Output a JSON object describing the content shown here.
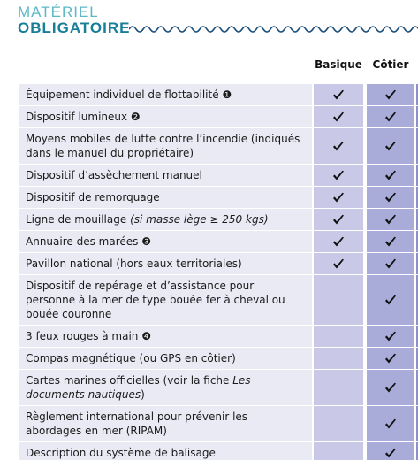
{
  "header": {
    "title_line1": "MATÉRIEL",
    "title_line2": "OBLIGATOIRE"
  },
  "table": {
    "columns": [
      "Basique",
      "Côtier"
    ],
    "rows": [
      {
        "label": [
          {
            "text": "Équipement individuel de flottabilité ❶"
          }
        ],
        "basique": true,
        "cotier": true
      },
      {
        "label": [
          {
            "text": "Dispositif lumineux ❷"
          }
        ],
        "basique": true,
        "cotier": true
      },
      {
        "label": [
          {
            "text": "Moyens mobiles de lutte contre l’incendie (indiqués dans le manuel du propriétaire)"
          }
        ],
        "basique": true,
        "cotier": true
      },
      {
        "label": [
          {
            "text": "Dispositif d’assèchement manuel"
          }
        ],
        "basique": true,
        "cotier": true
      },
      {
        "label": [
          {
            "text": "Dispositif de remorquage"
          }
        ],
        "basique": true,
        "cotier": true
      },
      {
        "label": [
          {
            "text": "Ligne de mouillage "
          },
          {
            "text": "(si masse lège ≥ 250 kgs)",
            "italic": true
          }
        ],
        "basique": true,
        "cotier": true
      },
      {
        "label": [
          {
            "text": "Annuaire des marées ❸"
          }
        ],
        "basique": true,
        "cotier": true
      },
      {
        "label": [
          {
            "text": "Pavillon national (hors eaux territoriales)"
          }
        ],
        "basique": true,
        "cotier": true
      },
      {
        "label": [
          {
            "text": "Dispositif de repérage et d’assistance pour personne à la mer de type bouée fer à cheval ou bouée couronne"
          }
        ],
        "basique": false,
        "cotier": true
      },
      {
        "label": [
          {
            "text": "3 feux rouges à main ❹"
          }
        ],
        "basique": false,
        "cotier": true
      },
      {
        "label": [
          {
            "text": "Compas magnétique (ou GPS en côtier)"
          }
        ],
        "basique": false,
        "cotier": true
      },
      {
        "label": [
          {
            "text": "Cartes marines officielles (voir la fiche "
          },
          {
            "text": "Les documents nautiques",
            "italic": true
          },
          {
            "text": ")"
          }
        ],
        "basique": false,
        "cotier": true
      },
      {
        "label": [
          {
            "text": "Règlement international pour prévenir les abordages en mer (RIPAM)"
          }
        ],
        "basique": false,
        "cotier": true
      },
      {
        "label": [
          {
            "text": "Description du système de balisage"
          }
        ],
        "basique": false,
        "cotier": true
      }
    ]
  }
}
